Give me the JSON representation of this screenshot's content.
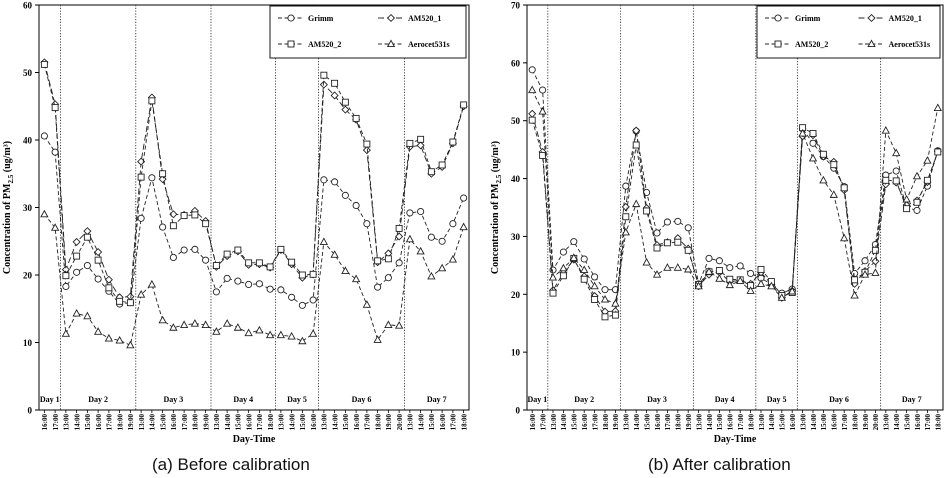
{
  "captions": [
    "(a) Before calibration",
    "(b) After calibration"
  ],
  "chart_data": [
    {
      "type": "line",
      "xlabel": "Day-Time",
      "ylabel_main": "Concentration of PM",
      "ylabel_sub": "2.5",
      "ylabel_unit": " (ug/m³)",
      "ylim": [
        0,
        60
      ],
      "yticks": [
        0,
        10,
        20,
        30,
        40,
        50,
        60
      ],
      "x": [
        "16:00",
        "17:00",
        "13:00",
        "14:00",
        "15:00",
        "16:00",
        "17:00",
        "18:00",
        "19:00",
        "13:00",
        "14:00",
        "15:00",
        "16:00",
        "17:00",
        "18:00",
        "19:00",
        "13:00",
        "14:00",
        "15:00",
        "16:00",
        "17:00",
        "18:00",
        "13:00",
        "14:00",
        "15:00",
        "16:00",
        "13:00",
        "14:00",
        "15:00",
        "16:00",
        "17:00",
        "18:00",
        "19:00",
        "20:00",
        "13:00",
        "14:00",
        "15:00",
        "16:00",
        "17:00",
        "18:00"
      ],
      "days": [
        {
          "label": "Day 1",
          "start": 0,
          "end": 1
        },
        {
          "label": "Day 2",
          "start": 2,
          "end": 8
        },
        {
          "label": "Day 3",
          "start": 9,
          "end": 15
        },
        {
          "label": "Day 4",
          "start": 16,
          "end": 21
        },
        {
          "label": "Day 5",
          "start": 22,
          "end": 25
        },
        {
          "label": "Day 6",
          "start": 26,
          "end": 33
        },
        {
          "label": "Day 7",
          "start": 34,
          "end": 39
        }
      ],
      "grid": false,
      "legend_position": "top-right",
      "series": [
        {
          "name": "Grimm",
          "marker": "circle",
          "values": [
            40.6,
            38.2,
            18.3,
            20.4,
            21.4,
            19.4,
            17.6,
            15.7,
            15.9,
            28.4,
            34.4,
            27.1,
            22.6,
            23.7,
            23.8,
            22.2,
            17.5,
            19.5,
            19.1,
            18.6,
            18.7,
            17.9,
            17.8,
            16.7,
            15.5,
            16.3,
            34.1,
            33.8,
            31.8,
            30.3,
            27.6,
            18.2,
            19.6,
            21.8,
            29.2,
            29.4,
            25.6,
            25.0,
            27.6,
            31.4
          ]
        },
        {
          "name": "AM520_1",
          "marker": "diamond",
          "values": [
            51.5,
            45.3,
            20.8,
            24.9,
            26.5,
            23.4,
            19.3,
            16.7,
            16.8,
            36.8,
            46.3,
            34.2,
            29.0,
            28.9,
            29.5,
            28.0,
            21.2,
            22.8,
            23.5,
            21.5,
            21.6,
            21.1,
            23.7,
            21.6,
            19.6,
            20.1,
            48.2,
            46.6,
            44.5,
            43.0,
            38.5,
            21.9,
            23.2,
            25.7,
            39.0,
            39.2,
            35.0,
            36.0,
            39.5,
            45.0
          ]
        },
        {
          "name": "AM520_2",
          "marker": "square",
          "values": [
            51.2,
            44.8,
            19.9,
            22.8,
            25.6,
            22.2,
            18.1,
            16.1,
            15.9,
            34.5,
            45.8,
            35.0,
            27.3,
            28.8,
            28.9,
            27.6,
            21.4,
            23.1,
            23.7,
            21.8,
            21.8,
            21.2,
            23.8,
            21.9,
            20.0,
            20.1,
            49.6,
            48.4,
            45.6,
            43.2,
            39.4,
            22.1,
            22.4,
            26.9,
            39.5,
            40.1,
            35.3,
            36.3,
            39.7,
            45.2
          ]
        },
        {
          "name": "Aerocet531s",
          "marker": "triangle",
          "values": [
            29.0,
            27.0,
            11.3,
            14.3,
            13.9,
            11.6,
            10.6,
            10.3,
            9.6,
            17.1,
            18.6,
            13.3,
            12.2,
            12.6,
            12.8,
            12.6,
            11.6,
            12.8,
            12.2,
            11.4,
            11.8,
            11.1,
            11.1,
            10.9,
            10.2,
            11.3,
            24.9,
            23.0,
            20.6,
            19.4,
            15.6,
            10.4,
            12.6,
            12.5,
            25.3,
            23.5,
            19.8,
            21.0,
            22.3,
            27.1
          ]
        }
      ]
    },
    {
      "type": "line",
      "xlabel": "Day-Time",
      "ylabel_main": "Concentration of PM",
      "ylabel_sub": "2.5",
      "ylabel_unit": " (ug/m³)",
      "ylim": [
        0,
        70
      ],
      "yticks": [
        0,
        10,
        20,
        30,
        40,
        50,
        60,
        70
      ],
      "x": [
        "16:00",
        "17:00",
        "13:00",
        "14:00",
        "15:00",
        "16:00",
        "17:00",
        "18:00",
        "19:00",
        "13:00",
        "14:00",
        "15:00",
        "16:00",
        "17:00",
        "18:00",
        "19:00",
        "13:00",
        "14:00",
        "15:00",
        "16:00",
        "17:00",
        "18:00",
        "13:00",
        "14:00",
        "15:00",
        "16:00",
        "13:00",
        "14:00",
        "15:00",
        "16:00",
        "17:00",
        "18:00",
        "19:00",
        "20:00",
        "13:00",
        "14:00",
        "15:00",
        "16:00",
        "17:00",
        "18:00"
      ],
      "days": [
        {
          "label": "Day 1",
          "start": 0,
          "end": 1
        },
        {
          "label": "Day 2",
          "start": 2,
          "end": 8
        },
        {
          "label": "Day 3",
          "start": 9,
          "end": 15
        },
        {
          "label": "Day 4",
          "start": 16,
          "end": 21
        },
        {
          "label": "Day 5",
          "start": 22,
          "end": 25
        },
        {
          "label": "Day 6",
          "start": 26,
          "end": 33
        },
        {
          "label": "Day 7",
          "start": 34,
          "end": 39
        }
      ],
      "grid": false,
      "legend_position": "top-right",
      "series": [
        {
          "name": "Grimm",
          "marker": "circle",
          "values": [
            58.8,
            55.3,
            24.2,
            27.3,
            29.1,
            26.1,
            23.0,
            20.8,
            20.8,
            38.7,
            48.2,
            37.6,
            30.6,
            32.5,
            32.6,
            31.5,
            21.8,
            26.2,
            25.8,
            24.6,
            24.9,
            23.6,
            22.8,
            21.7,
            20.2,
            20.9,
            48.6,
            46.1,
            43.8,
            41.8,
            38.6,
            23.6,
            25.8,
            28.6,
            40.6,
            41.3,
            35.0,
            34.5,
            38.7,
            44.8
          ]
        },
        {
          "name": "AM520_1",
          "marker": "diamond",
          "values": [
            51.2,
            44.6,
            20.7,
            23.7,
            26.0,
            23.1,
            19.7,
            17.0,
            17.1,
            35.1,
            48.3,
            34.9,
            28.5,
            29.0,
            29.7,
            27.9,
            21.4,
            23.4,
            23.8,
            22.2,
            22.4,
            21.8,
            23.8,
            21.7,
            19.4,
            20.6,
            47.3,
            47.5,
            43.8,
            42.9,
            38.0,
            21.8,
            24.0,
            25.7,
            39.0,
            39.3,
            35.4,
            36.2,
            39.4,
            44.7
          ]
        },
        {
          "name": "AM520_2",
          "marker": "square",
          "values": [
            50.1,
            44.0,
            20.2,
            23.2,
            26.2,
            22.6,
            19.1,
            16.1,
            16.4,
            33.4,
            45.8,
            34.4,
            28.0,
            28.9,
            29.0,
            27.6,
            21.7,
            23.9,
            24.1,
            22.6,
            22.5,
            21.5,
            24.3,
            22.2,
            19.8,
            20.3,
            48.8,
            47.8,
            44.2,
            42.4,
            38.4,
            22.5,
            23.8,
            27.6,
            39.7,
            39.6,
            34.8,
            35.9,
            39.7,
            44.6
          ]
        },
        {
          "name": "Aerocet531s",
          "marker": "triangle",
          "values": [
            55.3,
            51.6,
            22.9,
            24.5,
            26.3,
            24.2,
            21.4,
            19.1,
            18.4,
            30.7,
            35.6,
            25.5,
            23.4,
            24.6,
            24.6,
            24.3,
            21.4,
            23.9,
            22.7,
            21.6,
            22.3,
            20.6,
            21.8,
            21.4,
            19.4,
            20.5,
            47.8,
            43.5,
            39.7,
            37.2,
            29.7,
            19.8,
            23.4,
            23.7,
            48.3,
            44.4,
            36.4,
            40.4,
            43.1,
            52.2
          ]
        }
      ]
    }
  ]
}
